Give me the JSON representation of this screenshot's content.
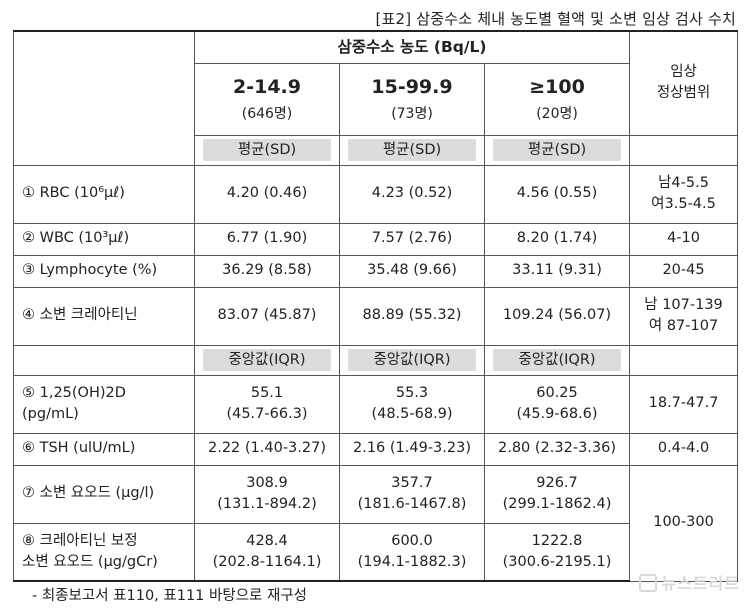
{
  "caption": "[표2] 삼중수소 체내 농도별 혈액 및 소변 임상 검사 수치",
  "header": {
    "group_title": "삼중수소 농도 (Bq/L)",
    "columns": [
      {
        "range": "2-14.9",
        "count": "(646명)"
      },
      {
        "range": "15-99.9",
        "count": "(73명)"
      },
      {
        "range": "≥100",
        "count": "(20명)"
      }
    ],
    "normal_range_title_line1": "임상",
    "normal_range_title_line2": "정상범위"
  },
  "stat_labels": {
    "mean": "평균(SD)",
    "median": "중앙값(IQR)"
  },
  "rows_mean": [
    {
      "label": "① RBC (10⁶μℓ)",
      "values": [
        "4.20 (0.46)",
        "4.23 (0.52)",
        "4.56 (0.55)"
      ],
      "normal": [
        "남4-5.5",
        "여3.5-4.5"
      ]
    },
    {
      "label": "② WBC (10³μℓ)",
      "values": [
        "6.77 (1.90)",
        "7.57 (2.76)",
        "8.20 (1.74)"
      ],
      "normal": [
        "4-10"
      ]
    },
    {
      "label": "③ Lymphocyte (%)",
      "values": [
        "36.29 (8.58)",
        "35.48 (9.66)",
        "33.11 (9.31)"
      ],
      "normal": [
        "20-45"
      ]
    },
    {
      "label": "④ 소변 크레아티닌",
      "values": [
        "83.07 (45.87)",
        "88.89 (55.32)",
        "109.24 (56.07)"
      ],
      "normal": [
        "남 107-139",
        "여 87-107"
      ]
    }
  ],
  "rows_median": [
    {
      "label": [
        "⑤ 1,25(OH)2D",
        "(pg/mL)"
      ],
      "values": [
        [
          "55.1",
          "(45.7-66.3)"
        ],
        [
          "55.3",
          "(48.5-68.9)"
        ],
        [
          "60.25",
          "(45.9-68.6)"
        ]
      ],
      "normal": "18.7-47.7"
    },
    {
      "label": [
        "⑥ TSH (ulU/mL)"
      ],
      "values": [
        [
          "2.22 (1.40-3.27)"
        ],
        [
          "2.16 (1.49-3.23)"
        ],
        [
          "2.80 (2.32-3.36)"
        ]
      ],
      "normal": "0.4-4.0"
    },
    {
      "label": [
        "⑦ 소변 요오드 (μg/l)"
      ],
      "values": [
        [
          "308.9",
          "(131.1-894.2)"
        ],
        [
          "357.7",
          "(181.6-1467.8)"
        ],
        [
          "926.7",
          "(299.1-1862.4)"
        ]
      ]
    },
    {
      "label": [
        "⑧ 크레아티닌 보정",
        "소변 요오드 (μg/gCr)"
      ],
      "values": [
        [
          "428.4",
          "(202.8-1164.1)"
        ],
        [
          "600.0",
          "(194.1-1882.3)"
        ],
        [
          "1222.8",
          "(300.6-2195.1)"
        ]
      ]
    }
  ],
  "iodine_normal": "100-300",
  "footnote": "- 최종보고서 표110, 표111 바탕으로 재구성",
  "watermark": "뉴스트리트"
}
